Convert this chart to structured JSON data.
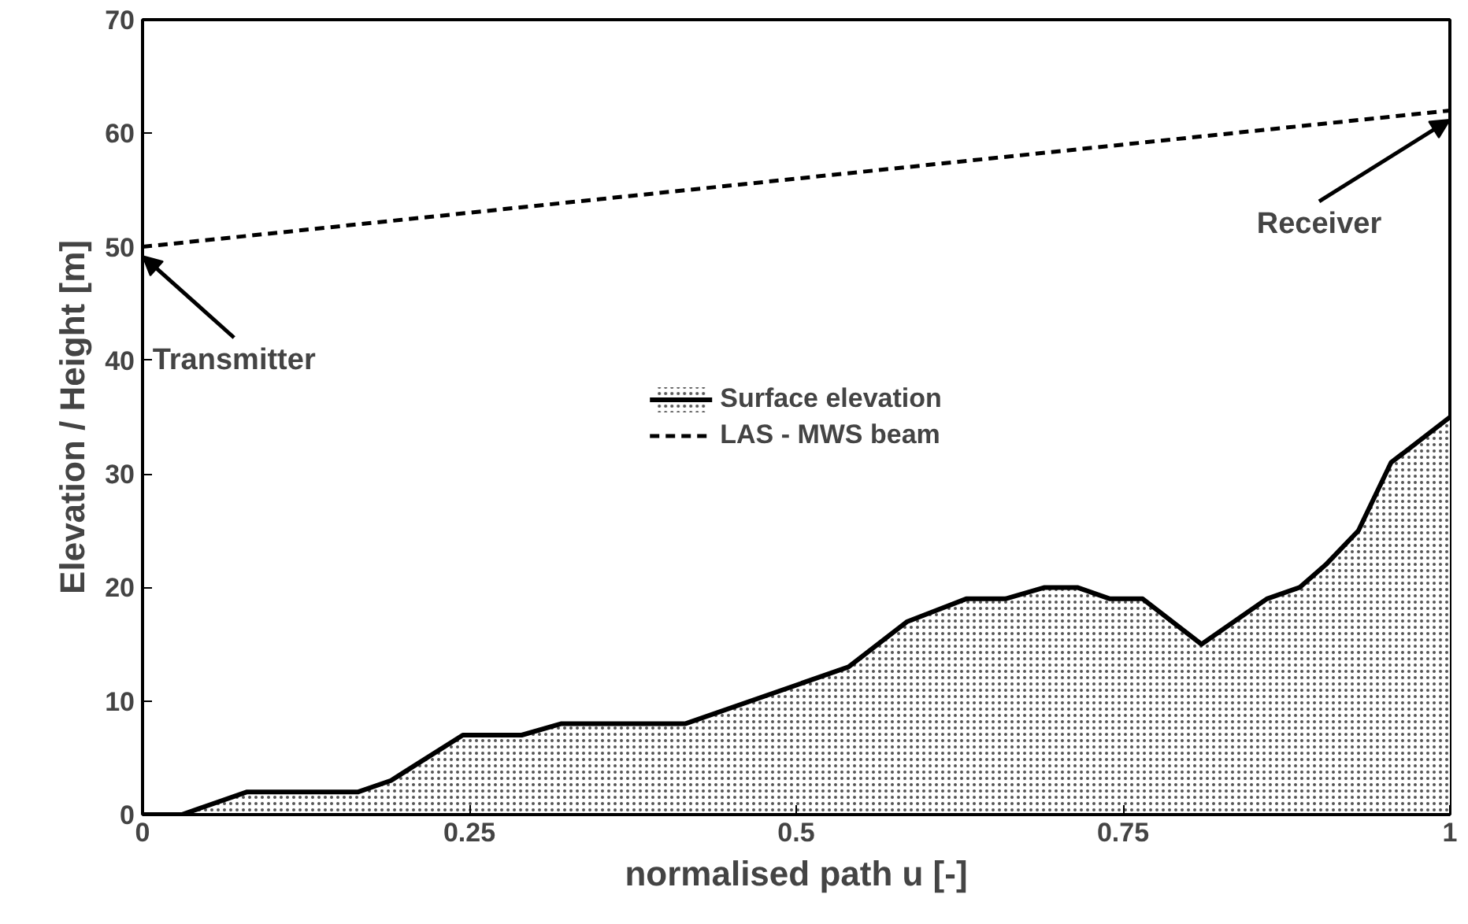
{
  "chart_data": {
    "type": "area",
    "xlabel": "normalised path u [-]",
    "ylabel": "Elevation / Height [m]",
    "series": [
      {
        "name": "Surface elevation",
        "color": "#000000",
        "x": [
          0,
          0.03,
          0.08,
          0.165,
          0.19,
          0.245,
          0.29,
          0.32,
          0.415,
          0.54,
          0.585,
          0.63,
          0.66,
          0.69,
          0.715,
          0.74,
          0.765,
          0.81,
          0.86,
          0.885,
          0.905,
          0.93,
          0.955,
          1
        ],
        "values": [
          0,
          0,
          2,
          2,
          3,
          7,
          7,
          8,
          8,
          13,
          17,
          19,
          19,
          20,
          20,
          19,
          19,
          15,
          19,
          20,
          22,
          25,
          31,
          35
        ]
      },
      {
        "name": "LAS - MWS beam",
        "type": "line",
        "line_style": "dashed",
        "color": "#000000",
        "x": [
          0,
          1
        ],
        "values": [
          50,
          62
        ]
      }
    ],
    "annotations": [
      {
        "text": "Transmitter",
        "x": 0,
        "y": 50
      },
      {
        "text": "Receiver",
        "x": 1,
        "y": 62
      }
    ],
    "xlim": [
      0,
      1
    ],
    "ylim": [
      0,
      70
    ],
    "xticks": [
      0,
      0.25,
      0.5,
      0.75,
      1
    ],
    "yticks": [
      0,
      10,
      20,
      30,
      40,
      50,
      60,
      70
    ],
    "grid": false,
    "legend": "center"
  }
}
